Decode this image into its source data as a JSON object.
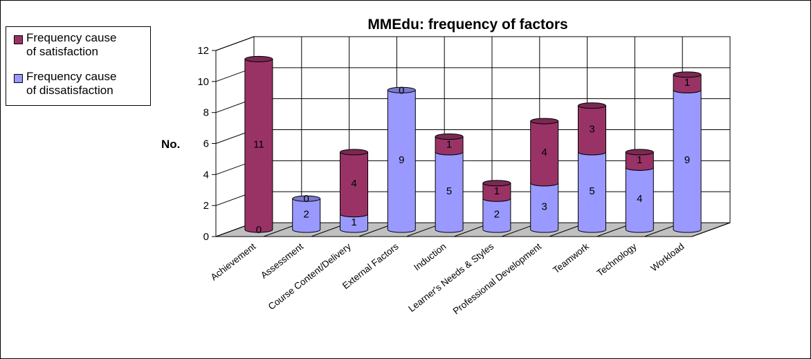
{
  "chart_data": {
    "type": "bar",
    "stacked": true,
    "three_d": true,
    "title": "MMEdu: frequency of factors",
    "ylabel": "No.",
    "xlabel": "",
    "ylim": [
      0,
      12
    ],
    "yticks": [
      "0",
      "2",
      "4",
      "6",
      "8",
      "10",
      "12"
    ],
    "grid": true,
    "legend_position": "top-left",
    "categories": [
      "Achievement",
      "Assessment",
      "Course Content/Delivery",
      "External Factors",
      "Induction",
      "Learner's Needs & Styles",
      "Professional Development",
      "Teamwork",
      "Technology",
      "Workload"
    ],
    "series": [
      {
        "name": "Frequency cause of dissatisfaction",
        "color": "#9999ff",
        "values": [
          0,
          2,
          1,
          9,
          5,
          2,
          3,
          5,
          4,
          9
        ]
      },
      {
        "name": "Frequency cause of satisfaction",
        "color": "#993366",
        "values": [
          11,
          0,
          4,
          0,
          1,
          1,
          4,
          3,
          1,
          1
        ]
      }
    ]
  },
  "legend": {
    "satisfaction_line1": "Frequency cause",
    "satisfaction_line2": "of satisfaction",
    "dissatisfaction_line1": "Frequency cause",
    "dissatisfaction_line2": "of dissatisfaction"
  }
}
